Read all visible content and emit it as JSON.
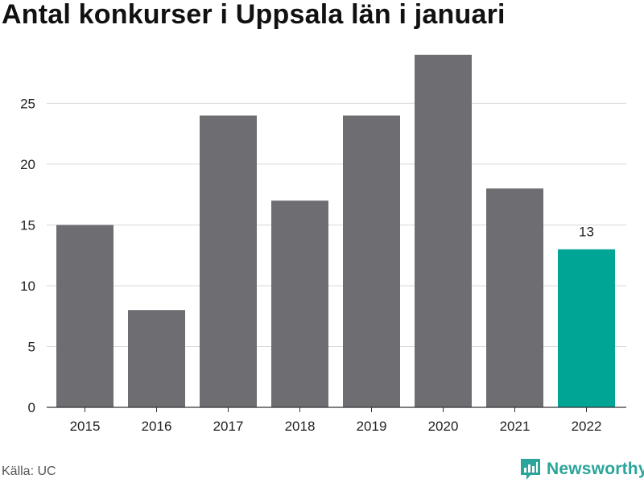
{
  "chart_data": {
    "type": "bar",
    "title": "Antal konkurser i Uppsala län i januari",
    "xlabel": "",
    "ylabel": "",
    "categories": [
      "2015",
      "2016",
      "2017",
      "2018",
      "2019",
      "2020",
      "2021",
      "2022"
    ],
    "values": [
      15,
      8,
      24,
      17,
      24,
      29,
      18,
      13
    ],
    "highlight_index": 7,
    "data_labels": [
      {
        "index": 7,
        "text": "13"
      }
    ],
    "ylim": [
      0,
      29
    ],
    "yticks": [
      0,
      5,
      10,
      15,
      20,
      25
    ],
    "grid": true,
    "colors": {
      "bar": "#6e6d72",
      "highlight": "#00a596",
      "grid": "#d9d9d9",
      "axis": "#333333"
    }
  },
  "footer": {
    "source": "Källa: UC",
    "brand": "Newsworthy"
  },
  "icons": {
    "brand_logo": "newsworthy-logo-icon"
  }
}
